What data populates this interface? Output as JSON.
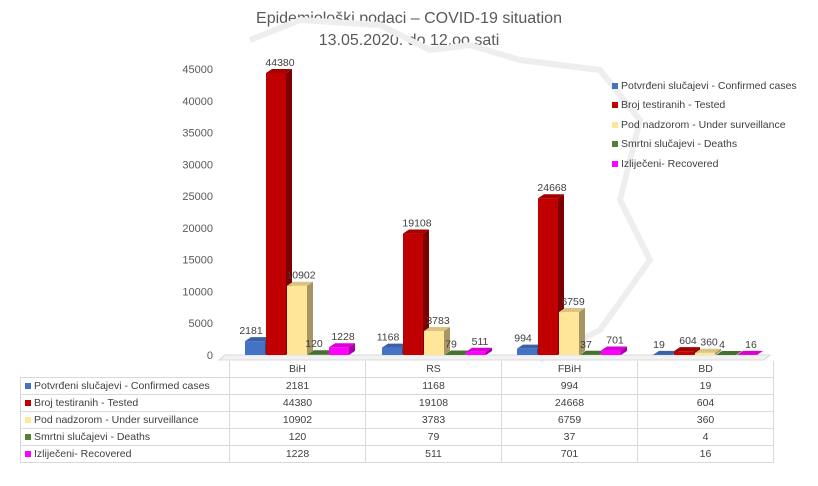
{
  "chart_data": {
    "type": "bar",
    "title": "Epidemiološki podaci – COVID-19 situation",
    "subtitle": "13.05.2020. do 12,oo sati",
    "categories": [
      "BiH",
      "RS",
      "FBiH",
      "BD"
    ],
    "ylim": [
      0,
      45000
    ],
    "yticks": [
      "0",
      "5000",
      "10000",
      "15000",
      "20000",
      "25000",
      "30000",
      "35000",
      "40000",
      "45000"
    ],
    "grid": false,
    "legend": "right",
    "series": [
      {
        "name": "Potvrđeni slučajevi - Confirmed cases",
        "color": "#4472c4",
        "values": [
          2181,
          1168,
          994,
          19
        ]
      },
      {
        "name": "Broj testiranih - Tested",
        "color": "#c00000",
        "values": [
          44380,
          19108,
          24668,
          604
        ]
      },
      {
        "name": "Pod nadzorom - Under surveillance",
        "color": "#ffe699",
        "values": [
          10902,
          3783,
          6759,
          360
        ]
      },
      {
        "name": "Smrtni slučajevi - Deaths",
        "color": "#548235",
        "values": [
          120,
          79,
          37,
          4
        ]
      },
      {
        "name": "Izliječeni- Recovered",
        "color": "#ff00ff",
        "values": [
          1228,
          511,
          701,
          16
        ]
      }
    ],
    "data_table": true
  }
}
